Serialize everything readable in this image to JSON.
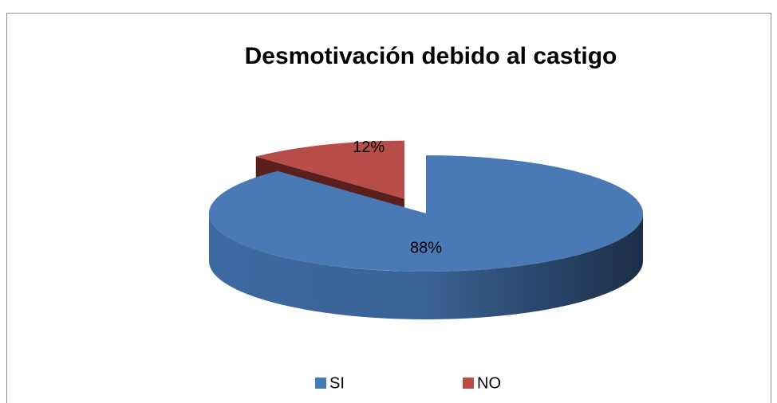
{
  "chart_data": {
    "type": "pie",
    "title": "Desmotivación debido al castigo",
    "categories": [
      "SI",
      "NO"
    ],
    "values": [
      88,
      12
    ],
    "value_labels": [
      "88%",
      "12%"
    ],
    "colors": [
      "#4a7ab5",
      "#b84c48"
    ],
    "legend": "bottom",
    "explode": [
      false,
      true
    ]
  }
}
